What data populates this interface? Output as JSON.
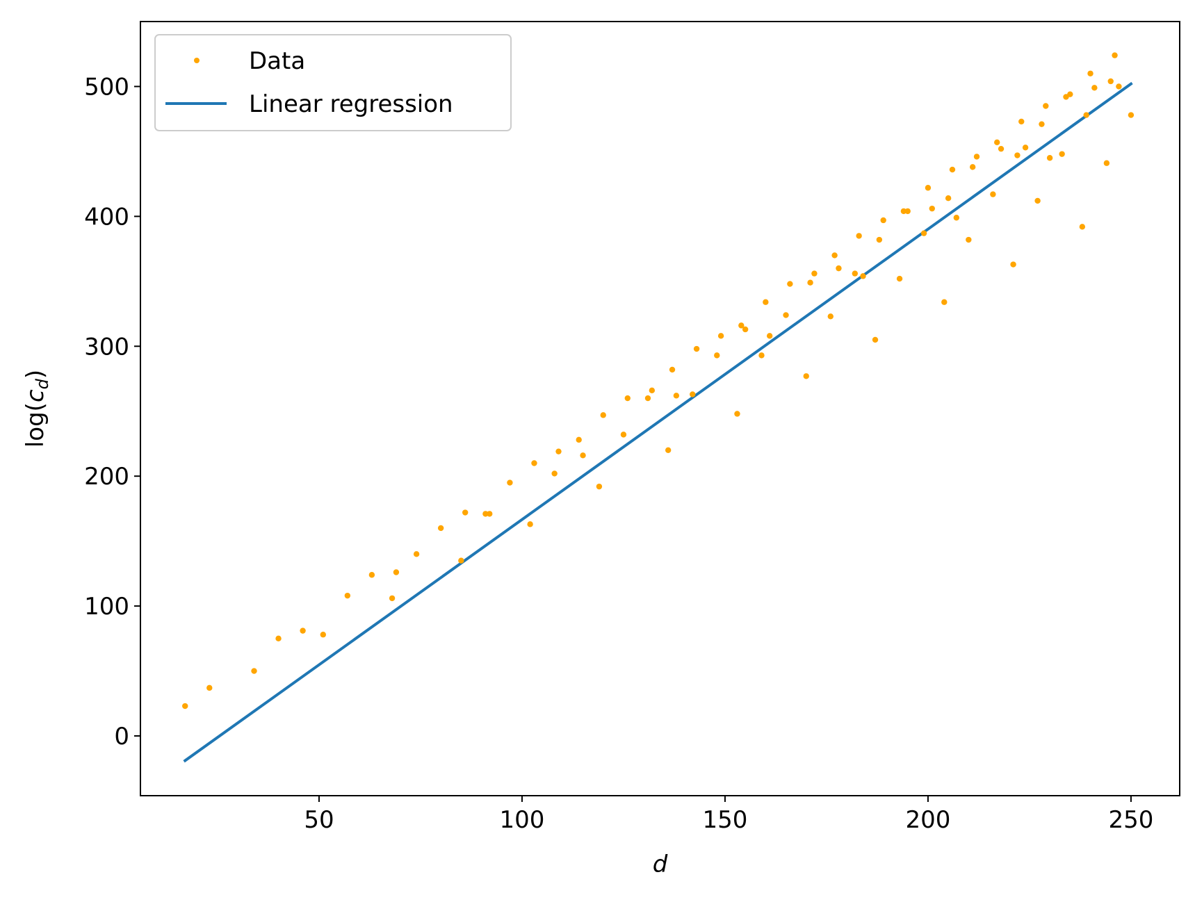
{
  "chart_data": {
    "type": "scatter",
    "title": "",
    "xlabel": "d",
    "ylabel_main": "log(",
    "ylabel_var": "c",
    "ylabel_sub": "d",
    "ylabel_close": ")",
    "xlim": [
      6,
      262
    ],
    "ylim": [
      -46,
      550
    ],
    "x_ticks": [
      50,
      100,
      150,
      200,
      250
    ],
    "y_ticks": [
      0,
      100,
      200,
      300,
      400,
      500
    ],
    "grid": false,
    "legend_position": "top-left",
    "colors": {
      "data": "#ffa500",
      "regression": "#1f77b4"
    },
    "series": [
      {
        "name": "Data",
        "kind": "scatter",
        "points": [
          [
            17,
            23
          ],
          [
            23,
            37
          ],
          [
            34,
            50
          ],
          [
            40,
            75
          ],
          [
            46,
            81
          ],
          [
            51,
            78
          ],
          [
            57,
            108
          ],
          [
            63,
            124
          ],
          [
            68,
            106
          ],
          [
            69,
            126
          ],
          [
            74,
            140
          ],
          [
            80,
            160
          ],
          [
            85,
            135
          ],
          [
            86,
            172
          ],
          [
            91,
            171
          ],
          [
            92,
            171
          ],
          [
            97,
            195
          ],
          [
            102,
            163
          ],
          [
            103,
            210
          ],
          [
            108,
            202
          ],
          [
            109,
            219
          ],
          [
            114,
            228
          ],
          [
            115,
            216
          ],
          [
            119,
            192
          ],
          [
            120,
            247
          ],
          [
            125,
            232
          ],
          [
            126,
            260
          ],
          [
            131,
            260
          ],
          [
            132,
            266
          ],
          [
            136,
            220
          ],
          [
            137,
            282
          ],
          [
            138,
            262
          ],
          [
            142,
            263
          ],
          [
            143,
            298
          ],
          [
            148,
            293
          ],
          [
            149,
            308
          ],
          [
            153,
            248
          ],
          [
            154,
            316
          ],
          [
            155,
            313
          ],
          [
            159,
            293
          ],
          [
            160,
            334
          ],
          [
            161,
            308
          ],
          [
            165,
            324
          ],
          [
            166,
            348
          ],
          [
            170,
            277
          ],
          [
            171,
            349
          ],
          [
            172,
            356
          ],
          [
            176,
            323
          ],
          [
            177,
            370
          ],
          [
            178,
            360
          ],
          [
            182,
            356
          ],
          [
            183,
            385
          ],
          [
            184,
            354
          ],
          [
            187,
            305
          ],
          [
            188,
            382
          ],
          [
            189,
            397
          ],
          [
            193,
            352
          ],
          [
            194,
            404
          ],
          [
            195,
            404
          ],
          [
            199,
            387
          ],
          [
            200,
            422
          ],
          [
            201,
            406
          ],
          [
            204,
            334
          ],
          [
            205,
            414
          ],
          [
            206,
            436
          ],
          [
            207,
            399
          ],
          [
            210,
            382
          ],
          [
            211,
            438
          ],
          [
            212,
            446
          ],
          [
            216,
            417
          ],
          [
            217,
            457
          ],
          [
            218,
            452
          ],
          [
            221,
            363
          ],
          [
            222,
            447
          ],
          [
            223,
            473
          ],
          [
            224,
            453
          ],
          [
            227,
            412
          ],
          [
            228,
            471
          ],
          [
            229,
            485
          ],
          [
            230,
            445
          ],
          [
            233,
            448
          ],
          [
            234,
            492
          ],
          [
            235,
            494
          ],
          [
            238,
            392
          ],
          [
            239,
            478
          ],
          [
            240,
            510
          ],
          [
            241,
            499
          ],
          [
            244,
            441
          ],
          [
            245,
            504
          ],
          [
            246,
            524
          ],
          [
            247,
            500
          ],
          [
            250,
            478
          ]
        ]
      },
      {
        "name": "Linear regression",
        "kind": "line",
        "points": [
          [
            17,
            -19
          ],
          [
            250,
            502
          ]
        ]
      }
    ]
  }
}
